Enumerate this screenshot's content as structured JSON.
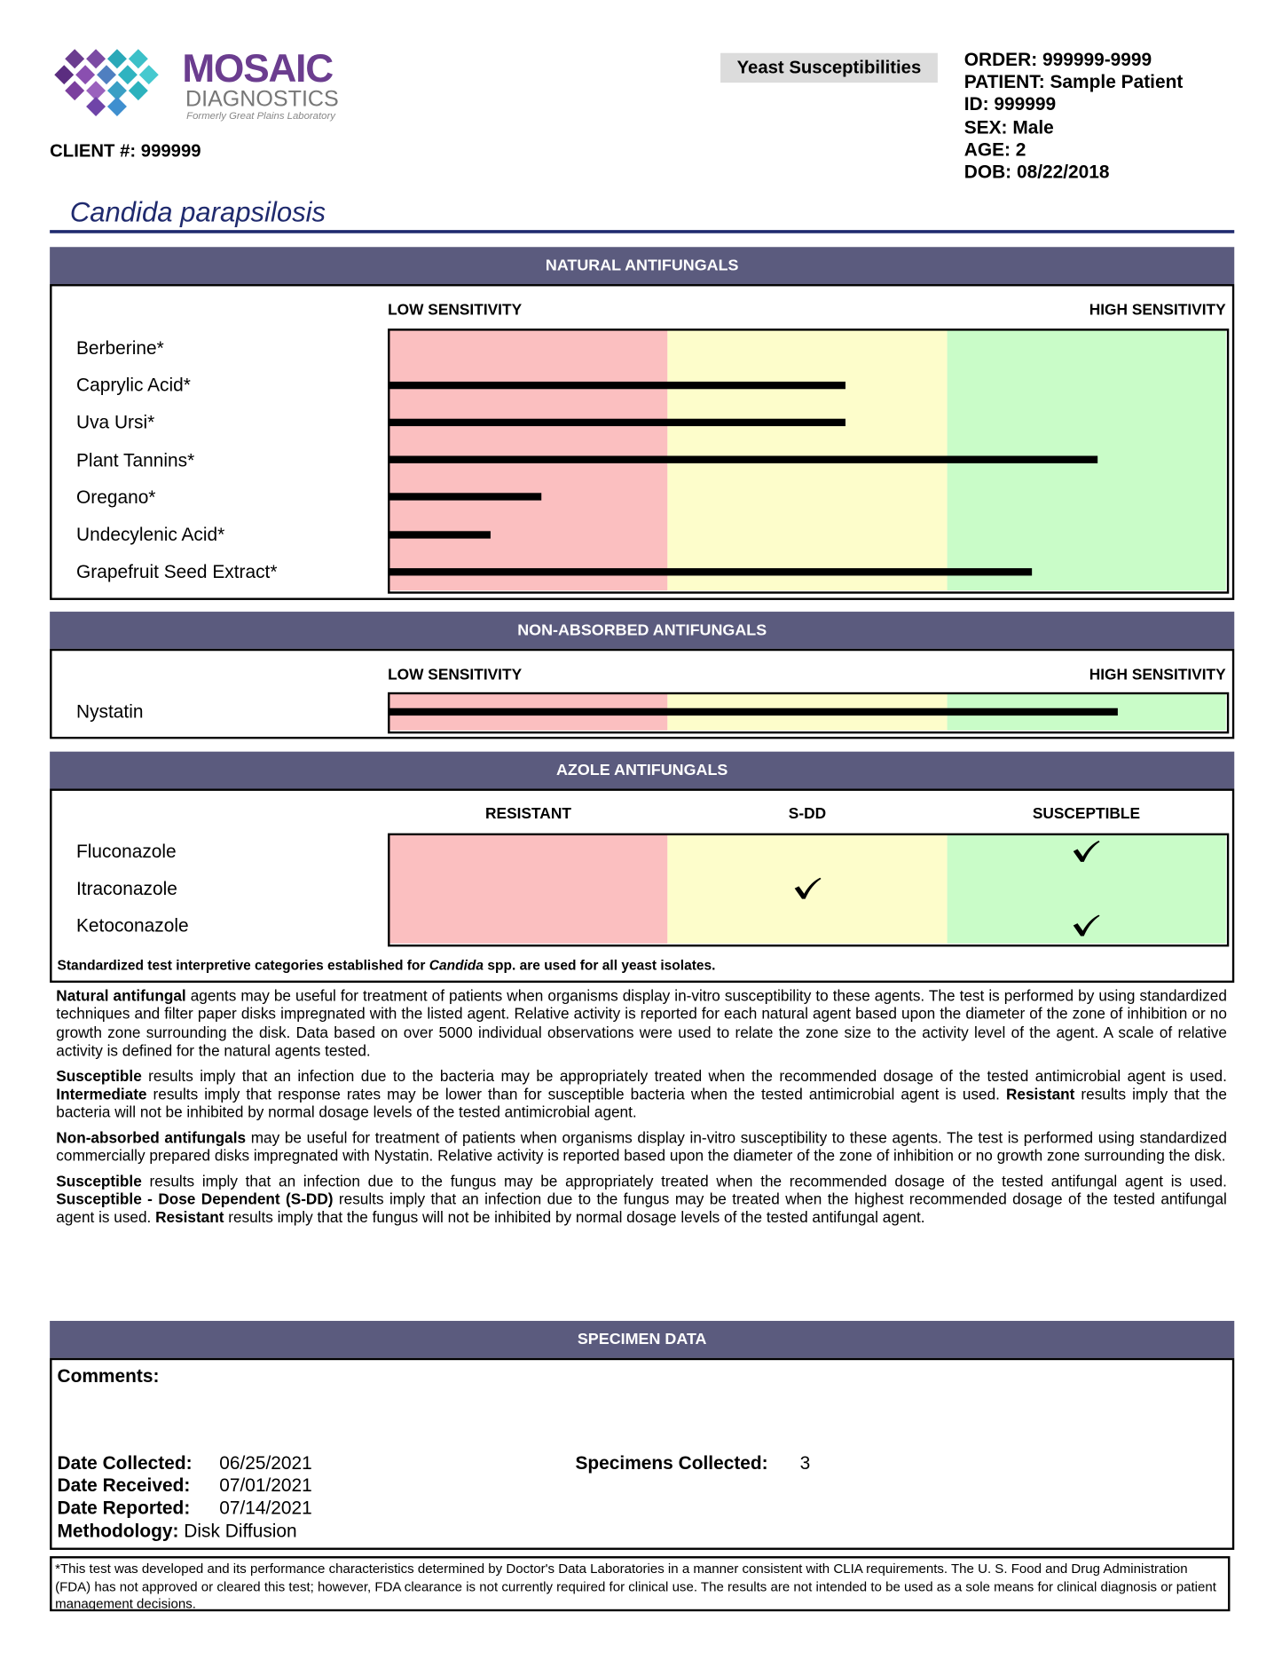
{
  "header": {
    "logo": {
      "name": "MOSAIC",
      "sub": "DIAGNOSTICS",
      "tagline": "Formerly Great Plains Laboratory"
    },
    "client": {
      "label": "CLIENT #:",
      "value": "999999"
    },
    "report": "Yeast Susceptibilities",
    "patient": [
      {
        "label": "ORDER:",
        "value": "999999-9999"
      },
      {
        "label": "PATIENT:",
        "value": "Sample Patient"
      },
      {
        "label": "ID:",
        "value": "999999"
      },
      {
        "label": "SEX:",
        "value": "Male"
      },
      {
        "label": "AGE:",
        "value": "2"
      },
      {
        "label": "DOB:",
        "value": "08/22/2018"
      }
    ]
  },
  "organism": "Candida parapsilosis",
  "zones": [
    "#fbbfc0",
    "#fdfdcb",
    "#c9fcc8"
  ],
  "chart_data": [
    {
      "type": "bar",
      "title": "NATURAL ANTIFUNGALS",
      "low_label": "LOW SENSITIVITY",
      "high_label": "HIGH SENSITIVITY",
      "categories": [
        "Berberine*",
        "Caprylic Acid*",
        "Uva Ursi*",
        "Plant Tannins*",
        "Oregano*",
        "Undecylenic Acid*",
        "Grapefruit Seed Extract*"
      ],
      "values": [
        0,
        54.6,
        54.6,
        84.7,
        18.2,
        12.2,
        76.8
      ],
      "xlim": [
        0,
        100
      ],
      "color": "#000000"
    },
    {
      "type": "bar",
      "title": "NON-ABSORBED ANTIFUNGALS",
      "low_label": "LOW SENSITIVITY",
      "high_label": "HIGH SENSITIVITY",
      "categories": [
        "Nystatin"
      ],
      "values": [
        87.1
      ],
      "xlim": [
        0,
        100
      ],
      "color": "#000000"
    }
  ],
  "azole": {
    "title": "AZOLE ANTIFUNGALS",
    "columns": [
      "RESISTANT",
      "S-DD",
      "SUSCEPTIBLE"
    ],
    "rows": [
      {
        "name": "Fluconazole",
        "result": 2
      },
      {
        "name": "Itraconazole",
        "result": 1
      },
      {
        "name": "Ketoconazole",
        "result": 2
      }
    ],
    "note": [
      {
        "text": "Standardized test interpretive categories established for "
      },
      {
        "text": "Candida",
        "italic": true
      },
      {
        "text": " spp. are used for all yeast isolates."
      }
    ]
  },
  "paragraphs": [
    [
      {
        "text": "Natural antifungal",
        "bold": true
      },
      {
        "text": " agents may be useful for treatment of patients when organisms display in-vitro susceptibility to these agents. The test is performed by using standardized techniques and filter paper disks impregnated with the listed agent. Relative activity is reported for each natural agent based upon the diameter of the zone of inhibition or no growth zone surrounding the disk. Data based on over 5000 individual observations were used to relate the zone size to the activity level of the agent. A scale of relative activity is defined for the natural agents tested."
      }
    ],
    [
      {
        "text": "Susceptible",
        "bold": true
      },
      {
        "text": " results imply that an infection due to the bacteria may be appropriately treated when the recommended dosage of the tested antimicrobial agent is used. "
      },
      {
        "text": "Intermediate",
        "bold": true
      },
      {
        "text": " results imply that response rates may be lower than for susceptible bacteria when the tested antimicrobial agent is used. "
      },
      {
        "text": "Resistant",
        "bold": true
      },
      {
        "text": " results imply that the bacteria will not be inhibited by normal dosage levels of the tested antimicrobial agent."
      }
    ],
    [
      {
        "text": "Non-absorbed antifungals",
        "bold": true
      },
      {
        "text": " may be useful for treatment of patients when organisms display in-vitro susceptibility to these agents. The test is performed using standardized commercially prepared disks impregnated with Nystatin. Relative activity is reported based upon the diameter of the zone of inhibition or no growth zone surrounding the disk."
      }
    ],
    [
      {
        "text": "Susceptible",
        "bold": true
      },
      {
        "text": " results imply that an infection due to the fungus may be appropriately treated when the recommended dosage of the tested antifungal agent is used. "
      },
      {
        "text": "Susceptible - Dose Dependent (S-DD)",
        "bold": true
      },
      {
        "text": " results imply that an infection due to the fungus may be treated when the highest recommended dosage of the tested antifungal agent is used. "
      },
      {
        "text": "Resistant",
        "bold": true
      },
      {
        "text": " results imply that the fungus will not be inhibited by normal dosage levels of the tested antifungal agent."
      }
    ]
  ],
  "specimen": {
    "title": "SPECIMEN DATA",
    "comments": "Comments:",
    "fields": [
      {
        "label": "Date Collected:",
        "value": "06/25/2021"
      },
      {
        "label": "Date Received:",
        "value": "07/01/2021"
      },
      {
        "label": "Date Reported:",
        "value": "07/14/2021"
      }
    ],
    "methodology": {
      "label": "Methodology:",
      "value": "Disk Diffusion"
    },
    "collected": {
      "label": "Specimens Collected:",
      "value": "3"
    }
  },
  "footnote": "*This test was developed and its performance characteristics determined by Doctor's Data Laboratories in a manner consistent with CLIA requirements. The U. S. Food and Drug Administration (FDA) has not approved or cleared this test; however, FDA clearance is not currently required for clinical use. The results are not intended to be used as a sole means for clinical diagnosis or patient management decisions."
}
